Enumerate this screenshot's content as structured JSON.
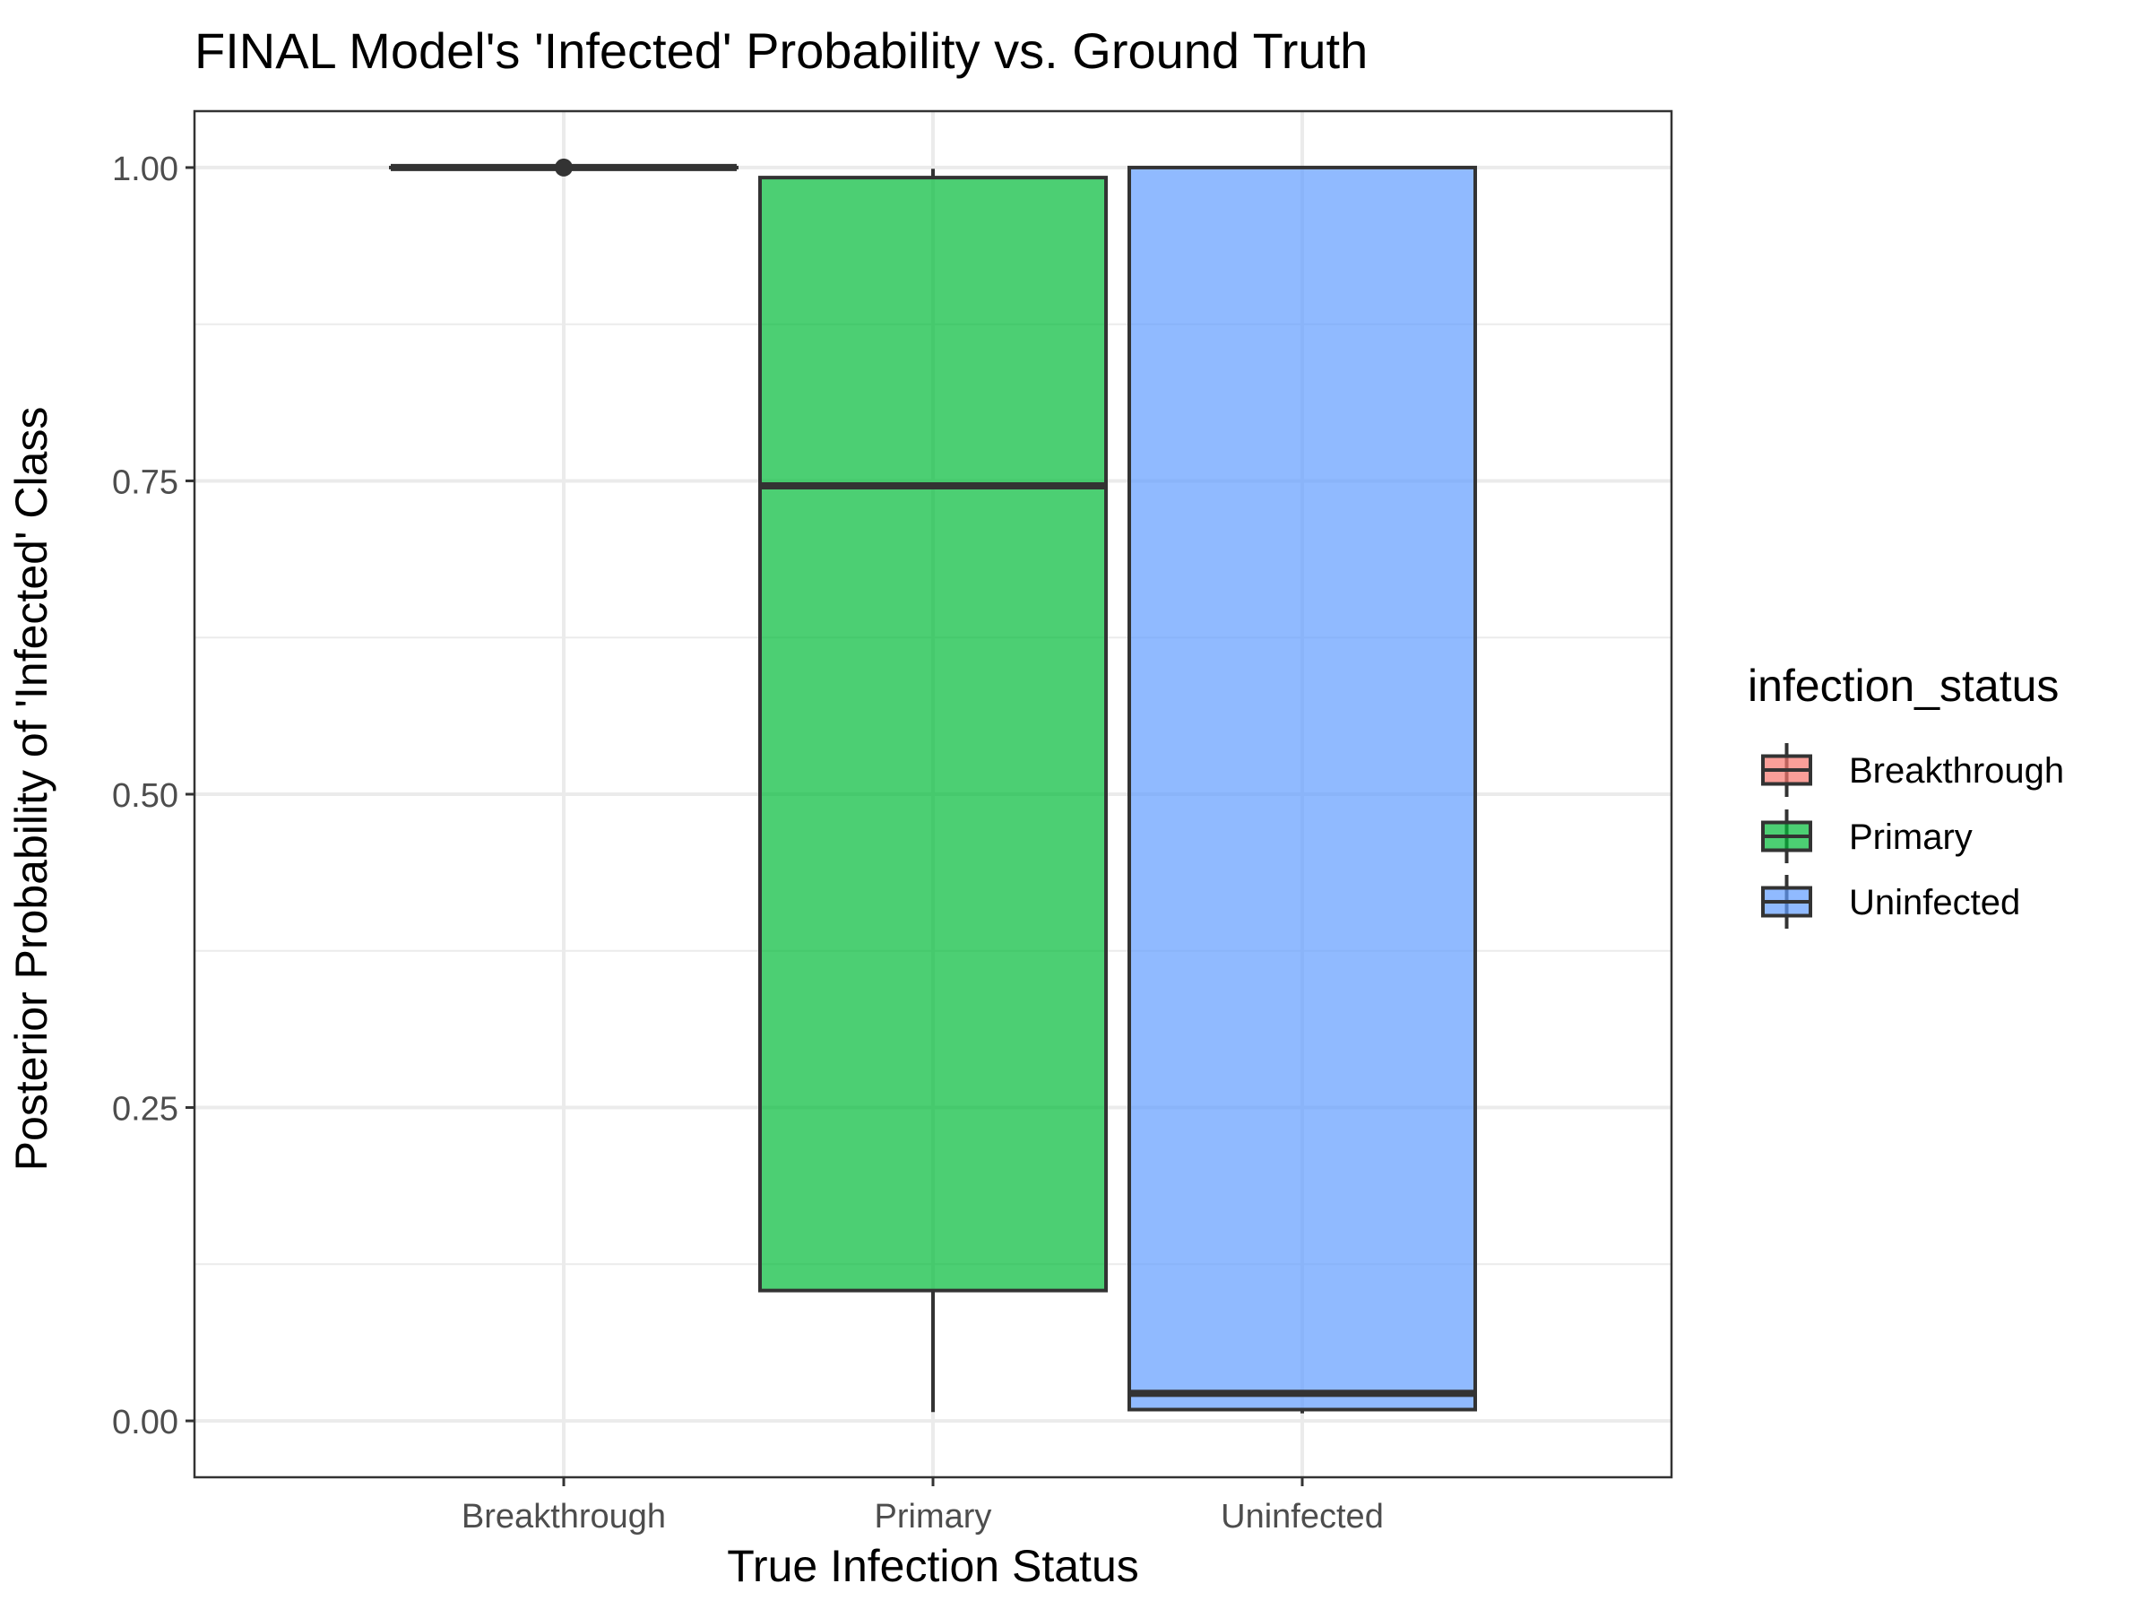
{
  "chart_data": {
    "type": "boxplot",
    "title": "FINAL Model's 'Infected' Probability vs. Ground Truth",
    "xlabel": "True Infection Status",
    "ylabel": "Posterior Probability of 'Infected' Class",
    "ylim": [
      -0.045,
      1.045
    ],
    "y_ticks": [
      0.0,
      0.25,
      0.5,
      0.75,
      1.0
    ],
    "y_tick_labels": [
      "0.00",
      "0.25",
      "0.50",
      "0.75",
      "1.00"
    ],
    "y_minor_ticks": [
      0.125,
      0.375,
      0.625,
      0.875
    ],
    "categories": [
      "Breakthrough",
      "Primary",
      "Uninfected"
    ],
    "boxes": [
      {
        "category": "Breakthrough",
        "min": 1.0,
        "q1": 1.0,
        "median": 1.0,
        "q3": 1.0,
        "max": 1.0,
        "outliers": [
          1.0
        ],
        "fill": "#F8766D"
      },
      {
        "category": "Primary",
        "min": 0.007,
        "q1": 0.104,
        "median": 0.746,
        "q3": 0.992,
        "max": 0.999,
        "outliers": [],
        "fill": "#00BA38"
      },
      {
        "category": "Uninfected",
        "min": 0.006,
        "q1": 0.009,
        "median": 0.022,
        "q3": 1.0,
        "max": 1.0,
        "outliers": [],
        "fill": "#619CFF"
      }
    ],
    "legend": {
      "title": "infection_status",
      "position": "right",
      "entries": [
        "Breakthrough",
        "Primary",
        "Uninfected"
      ]
    },
    "grid": true,
    "theme": "bw",
    "colors": {
      "box_line": "#333333",
      "grid": "#EBEBEB",
      "panel_border": "#333333",
      "tick_label": "#4D4D4D",
      "text": "#000000"
    }
  }
}
